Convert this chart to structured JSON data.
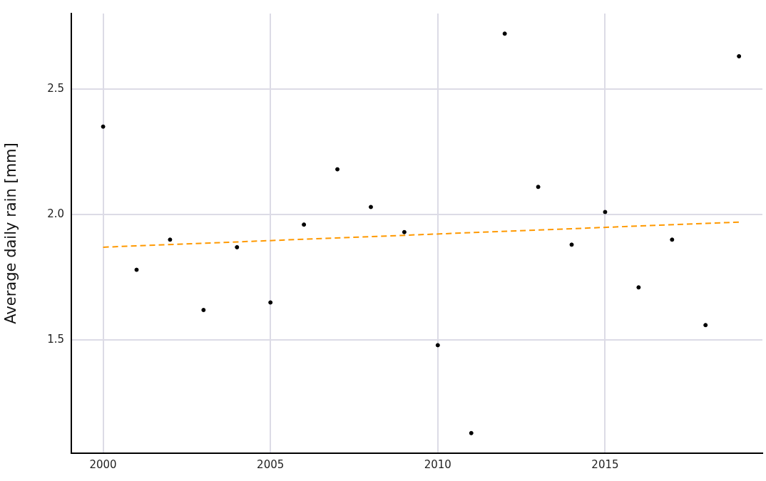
{
  "chart_data": {
    "type": "scatter",
    "ylabel": "Average daily rain [mm]",
    "xlim": [
      1999.05,
      2019.7
    ],
    "xticks": [
      2000,
      2005,
      2010,
      2015
    ],
    "ylim": [
      1.05,
      2.8
    ],
    "yticks": [
      {
        "value": 1.5,
        "label": "1.5"
      },
      {
        "value": 2,
        "label": "2.0"
      },
      {
        "value": 2.5,
        "label": "2.5"
      }
    ],
    "grid": true,
    "marker": "circle",
    "series": [
      {
        "type": "scatter",
        "color": "#000000",
        "x": [
          2000,
          2001,
          2002,
          2003,
          2004,
          2005,
          2006,
          2007,
          2008,
          2009,
          2010,
          2011,
          2012,
          2013,
          2014,
          2015,
          2016,
          2017,
          2018,
          2019
        ],
        "values": [
          2.35,
          1.78,
          1.9,
          1.62,
          1.87,
          1.65,
          1.96,
          2.18,
          2.03,
          1.93,
          1.48,
          1.13,
          2.72,
          2.11,
          1.88,
          2.01,
          1.71,
          1.9,
          1.56,
          2.63
        ]
      },
      {
        "type": "line",
        "color": "#ff9900",
        "line_style": "dashed",
        "marker": "none",
        "x": [
          2000,
          2019
        ],
        "values": [
          1.87,
          1.97
        ]
      }
    ]
  }
}
